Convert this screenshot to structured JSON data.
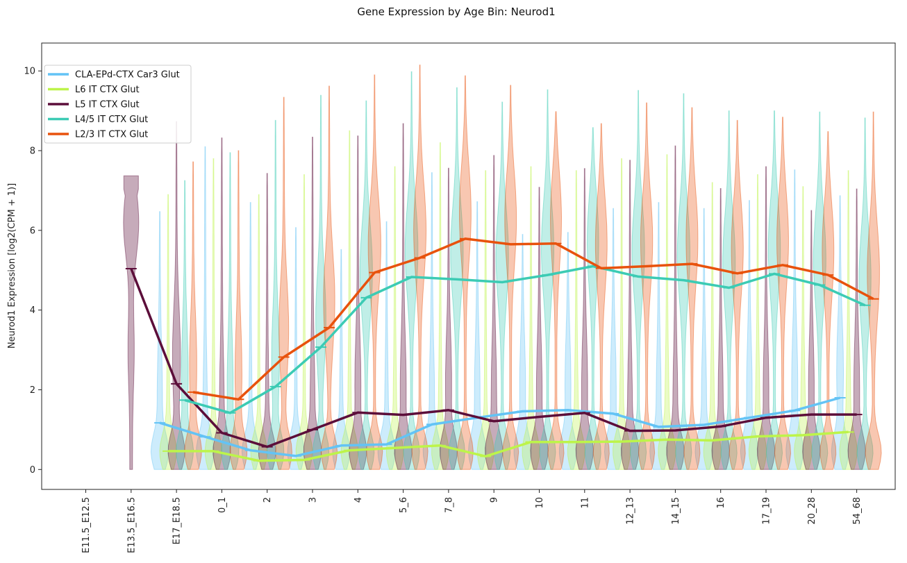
{
  "chart_data": {
    "type": "line",
    "title": "Gene Expression by Age Bin: Neurod1",
    "xlabel": "",
    "ylabel": "Neurod1 Expression [log2(CPM + 1)]",
    "ylim": [
      -0.5,
      10.7
    ],
    "yticks": [
      0,
      2,
      4,
      6,
      8,
      10
    ],
    "grid": false,
    "legend_position": "top-left",
    "categories": [
      "E11.5_E12.5",
      "E13.5_E16.5",
      "E17_E18.5",
      "0_1",
      "2",
      "3",
      "4",
      "5_6",
      "7_8",
      "9",
      "10",
      "11",
      "12_13",
      "14_15",
      "16",
      "17_19",
      "20_28",
      "54_68"
    ],
    "series": [
      {
        "name": "CLA-EPd-CTX Car3 Glut",
        "color": "#63c3f5",
        "values": [
          null,
          null,
          1.17,
          0.82,
          0.48,
          0.34,
          0.6,
          0.63,
          1.13,
          1.3,
          1.46,
          1.49,
          1.4,
          1.07,
          1.12,
          1.3,
          1.48,
          1.8
        ],
        "violin_max": [
          null,
          null,
          6.47,
          8.1,
          6.7,
          6.07,
          5.52,
          6.22,
          7.45,
          6.72,
          5.9,
          5.95,
          6.55,
          6.7,
          6.55,
          6.75,
          7.52,
          6.87
        ]
      },
      {
        "name": "L6 IT CTX Glut",
        "color": "#bdf44a",
        "values": [
          null,
          null,
          0.46,
          0.46,
          0.22,
          0.24,
          0.48,
          0.54,
          0.6,
          0.33,
          0.69,
          0.69,
          0.7,
          0.75,
          0.73,
          0.83,
          0.86,
          0.94
        ],
        "violin_max": [
          null,
          null,
          6.9,
          7.8,
          6.9,
          7.4,
          8.5,
          7.6,
          8.2,
          7.5,
          7.6,
          7.5,
          7.8,
          7.9,
          7.2,
          7.4,
          7.1,
          7.5
        ]
      },
      {
        "name": "L5 IT CTX Glut",
        "color": "#5c0e3a",
        "values": [
          null,
          5.04,
          2.15,
          0.92,
          0.57,
          1.0,
          1.43,
          1.37,
          1.49,
          1.21,
          1.32,
          1.42,
          0.97,
          0.98,
          1.08,
          1.3,
          1.38,
          1.38
        ],
        "violin_max": [
          null,
          7.37,
          8.73,
          8.32,
          7.43,
          8.34,
          8.37,
          8.68,
          7.56,
          7.88,
          7.08,
          7.55,
          7.76,
          8.12,
          7.05,
          7.6,
          6.5,
          7.04
        ]
      },
      {
        "name": "L4/5 IT CTX Glut",
        "color": "#3ccbb4",
        "values": [
          null,
          null,
          1.74,
          1.42,
          2.08,
          3.07,
          4.31,
          4.83,
          4.77,
          4.7,
          4.88,
          5.1,
          4.84,
          4.75,
          4.56,
          4.91,
          4.63,
          4.12
        ],
        "violin_max": [
          null,
          null,
          7.25,
          7.95,
          8.76,
          9.39,
          9.25,
          9.98,
          9.58,
          9.22,
          9.53,
          8.58,
          9.51,
          9.43,
          9.0,
          9.0,
          8.97,
          8.82
        ]
      },
      {
        "name": "L2/3 IT CTX Glut",
        "color": "#e8520d",
        "values": [
          null,
          null,
          1.94,
          1.76,
          2.82,
          3.56,
          4.94,
          5.31,
          5.79,
          5.65,
          5.67,
          5.05,
          5.1,
          5.16,
          4.92,
          5.13,
          4.88,
          4.28
        ],
        "violin_max": [
          null,
          null,
          7.72,
          8.0,
          9.34,
          9.62,
          9.9,
          10.15,
          9.88,
          9.64,
          8.98,
          8.68,
          9.2,
          9.08,
          8.76,
          8.84,
          8.48,
          8.97
        ]
      }
    ]
  }
}
